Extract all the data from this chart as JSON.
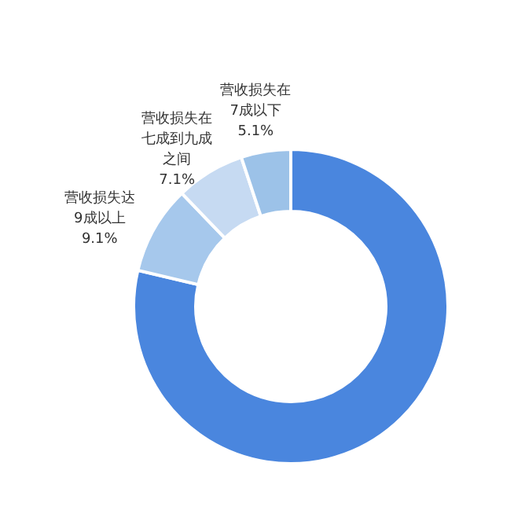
{
  "chart_data": {
    "type": "donut",
    "categories": [
      null,
      "营收损失达9成以上",
      "营收损失在七成到九成之间",
      "营收损失在7成以下"
    ],
    "values": [
      78.7,
      9.1,
      7.1,
      5.1
    ],
    "colors": [
      "#4a86de",
      "#a6c8ec",
      "#c6daf2",
      "#9cc2e8"
    ],
    "value_labels": [
      null,
      "9.1%",
      "7.1%",
      "5.1%"
    ]
  }
}
